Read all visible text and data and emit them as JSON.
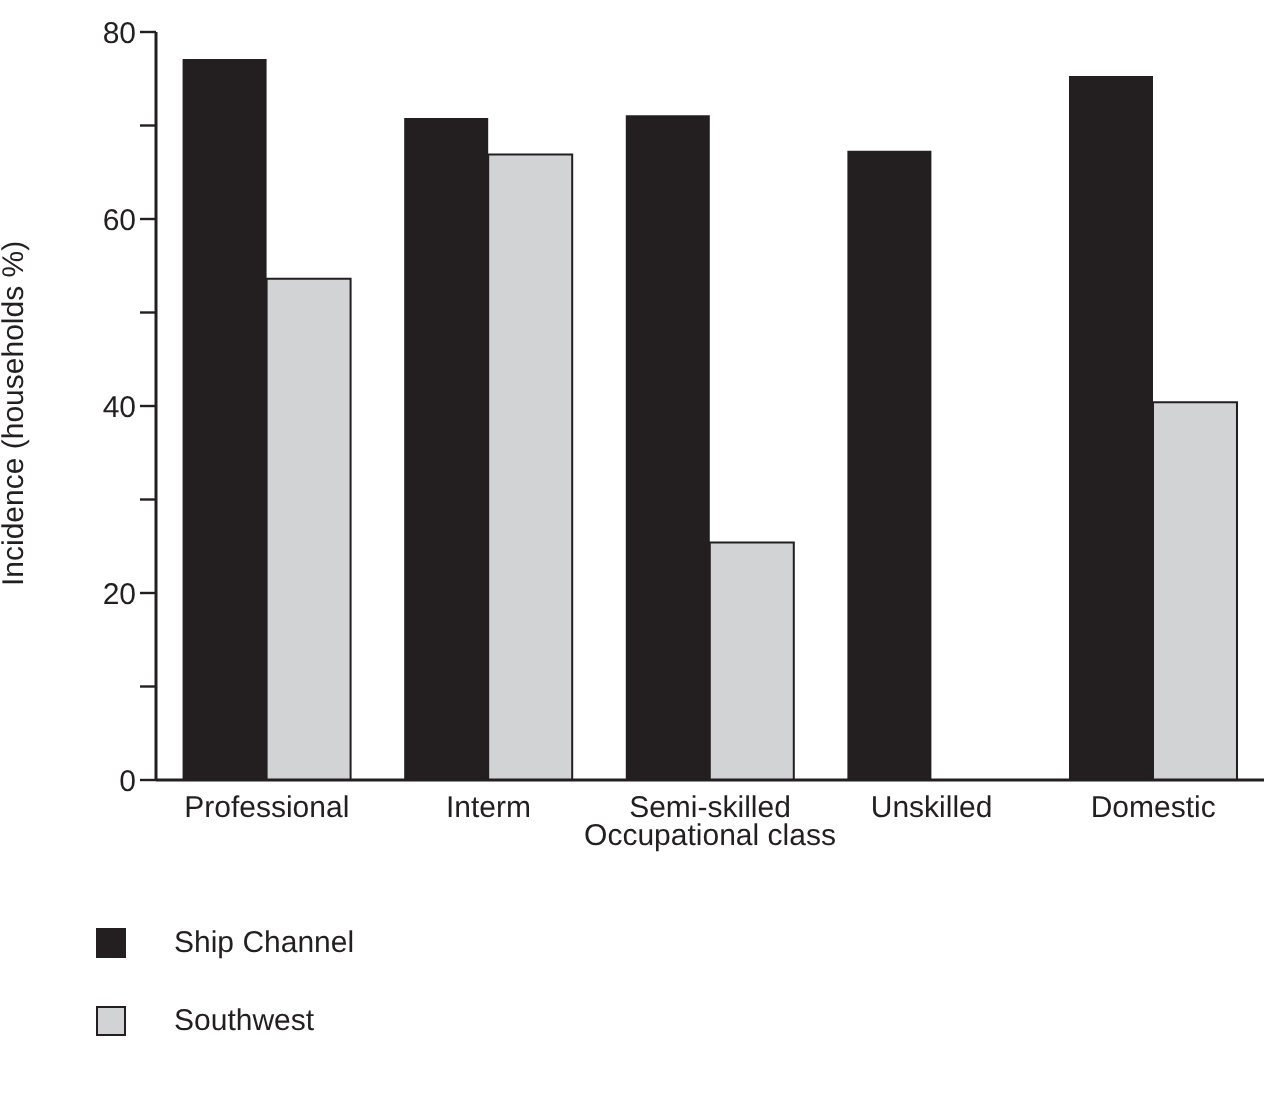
{
  "chart_data": {
    "type": "bar",
    "xlabel": "Occupational class",
    "ylabel": "Incidence (households %)",
    "categories": [
      "Professional",
      "Interm",
      "Semi-skilled",
      "Unskilled",
      "Domestic"
    ],
    "series": [
      {
        "name": "Ship Channel",
        "color": "#231f20",
        "values": [
          77.1,
          70.8,
          71.1,
          67.3,
          75.3
        ]
      },
      {
        "name": "Southwest",
        "color": "#d1d3d4",
        "values": [
          53.6,
          66.9,
          25.4,
          null,
          40.4
        ]
      }
    ],
    "ylim": [
      0,
      80
    ],
    "yticks": [
      0,
      {
        "value": 10,
        "label": null
      },
      20,
      {
        "value": 30,
        "label": null
      },
      40,
      {
        "value": 50,
        "label": null
      },
      60,
      {
        "value": 70,
        "label": null
      },
      80
    ],
    "grid": false,
    "legend": "bottom left"
  }
}
